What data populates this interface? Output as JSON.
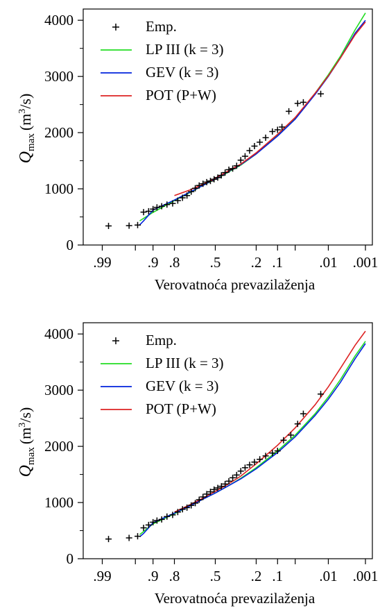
{
  "chart_data": [
    {
      "type": "line",
      "xlabel": "Verovatnoća prevazilaženja",
      "ylabel_main": "Q",
      "ylabel_sub": "max",
      "ylabel_unit_pre": "(m",
      "ylabel_unit_sup": "3",
      "ylabel_unit_post": "/s)",
      "x_ticks": [
        ".99",
        ".9",
        ".8",
        ".5",
        ".2",
        ".1",
        ".01",
        ".001"
      ],
      "x_tick_probs": [
        0.99,
        0.9,
        0.8,
        0.5,
        0.2,
        0.1,
        0.01,
        0.001
      ],
      "x_minor_probs": [
        0.95,
        0.05
      ],
      "y_ticks": [
        0,
        1000,
        2000,
        3000,
        4000
      ],
      "ylim": [
        0,
        4200
      ],
      "legend_position": "top-left",
      "series": [
        {
          "name": "Emp.",
          "kind": "points",
          "color": "#000000",
          "x": [
            0.986,
            0.962,
            0.945,
            0.93,
            0.915,
            0.9,
            0.885,
            0.865,
            0.84,
            0.81,
            0.78,
            0.75,
            0.72,
            0.69,
            0.66,
            0.63,
            0.6,
            0.57,
            0.54,
            0.51,
            0.48,
            0.45,
            0.42,
            0.39,
            0.36,
            0.33,
            0.3,
            0.27,
            0.24,
            0.21,
            0.18,
            0.15,
            0.12,
            0.1,
            0.085,
            0.065,
            0.045,
            0.035,
            0.015
          ],
          "y": [
            340,
            345,
            355,
            585,
            600,
            640,
            670,
            690,
            720,
            740,
            790,
            840,
            880,
            950,
            1010,
            1060,
            1090,
            1120,
            1140,
            1170,
            1200,
            1240,
            1290,
            1340,
            1360,
            1410,
            1510,
            1580,
            1680,
            1760,
            1830,
            1910,
            2020,
            2050,
            2100,
            2380,
            2520,
            2540,
            2690
          ]
        },
        {
          "name": "LP III (k = 3)",
          "kind": "line",
          "color": "#22dd22",
          "x": [
            0.94,
            0.9,
            0.8,
            0.7,
            0.6,
            0.5,
            0.4,
            0.3,
            0.2,
            0.1,
            0.05,
            0.02,
            0.01,
            0.005,
            0.002,
            0.001
          ],
          "y": [
            430,
            580,
            790,
            930,
            1060,
            1170,
            1290,
            1420,
            1620,
            1960,
            2260,
            2700,
            3030,
            3360,
            3830,
            4130
          ]
        },
        {
          "name": "GEV (k = 3)",
          "kind": "line",
          "color": "#0022dd",
          "x": [
            0.94,
            0.93,
            0.9,
            0.8,
            0.7,
            0.6,
            0.5,
            0.4,
            0.3,
            0.2,
            0.1,
            0.05,
            0.02,
            0.01,
            0.005,
            0.002,
            0.001
          ],
          "y": [
            360,
            430,
            620,
            800,
            940,
            1060,
            1180,
            1300,
            1430,
            1620,
            1940,
            2240,
            2680,
            3000,
            3330,
            3770,
            4000
          ]
        },
        {
          "name": "POT (P+W)",
          "kind": "line",
          "color": "#dd2222",
          "x": [
            0.8,
            0.7,
            0.6,
            0.5,
            0.4,
            0.3,
            0.2,
            0.1,
            0.05,
            0.02,
            0.01,
            0.005,
            0.002,
            0.001
          ],
          "y": [
            880,
            980,
            1080,
            1190,
            1310,
            1440,
            1640,
            1970,
            2270,
            2700,
            3010,
            3330,
            3740,
            3970
          ]
        }
      ]
    },
    {
      "type": "line",
      "xlabel": "Verovatnoća prevazilaženja",
      "ylabel_main": "Q",
      "ylabel_sub": "max",
      "ylabel_unit_pre": "(m",
      "ylabel_unit_sup": "3",
      "ylabel_unit_post": "/s)",
      "x_ticks": [
        ".99",
        ".9",
        ".8",
        ".5",
        ".2",
        ".1",
        ".01",
        ".001"
      ],
      "x_tick_probs": [
        0.99,
        0.9,
        0.8,
        0.5,
        0.2,
        0.1,
        0.01,
        0.001
      ],
      "x_minor_probs": [
        0.95,
        0.05
      ],
      "y_ticks": [
        0,
        1000,
        2000,
        3000,
        4000
      ],
      "ylim": [
        0,
        4200
      ],
      "legend_position": "top-left",
      "series": [
        {
          "name": "Emp.",
          "kind": "points",
          "color": "#000000",
          "x": [
            0.986,
            0.962,
            0.945,
            0.93,
            0.915,
            0.9,
            0.885,
            0.865,
            0.84,
            0.81,
            0.78,
            0.75,
            0.72,
            0.69,
            0.66,
            0.63,
            0.6,
            0.57,
            0.54,
            0.51,
            0.48,
            0.45,
            0.42,
            0.39,
            0.36,
            0.33,
            0.3,
            0.27,
            0.24,
            0.21,
            0.18,
            0.15,
            0.12,
            0.1,
            0.08,
            0.06,
            0.045,
            0.035,
            0.015
          ],
          "y": [
            350,
            370,
            400,
            550,
            600,
            650,
            680,
            700,
            750,
            780,
            830,
            880,
            910,
            950,
            990,
            1050,
            1100,
            1150,
            1190,
            1230,
            1260,
            1290,
            1330,
            1380,
            1440,
            1490,
            1560,
            1620,
            1670,
            1720,
            1770,
            1830,
            1880,
            1920,
            2110,
            2200,
            2400,
            2580,
            2930
          ]
        },
        {
          "name": "LP III (k = 3)",
          "kind": "line",
          "color": "#22dd22",
          "x": [
            0.94,
            0.9,
            0.8,
            0.7,
            0.6,
            0.5,
            0.4,
            0.3,
            0.2,
            0.1,
            0.05,
            0.02,
            0.01,
            0.005,
            0.002,
            0.001
          ],
          "y": [
            430,
            620,
            800,
            940,
            1060,
            1170,
            1290,
            1430,
            1620,
            1920,
            2200,
            2580,
            2880,
            3190,
            3610,
            3870
          ]
        },
        {
          "name": "GEV (k = 3)",
          "kind": "line",
          "color": "#0022dd",
          "x": [
            0.94,
            0.93,
            0.9,
            0.8,
            0.7,
            0.6,
            0.5,
            0.4,
            0.3,
            0.2,
            0.1,
            0.05,
            0.02,
            0.01,
            0.005,
            0.002,
            0.001
          ],
          "y": [
            390,
            450,
            640,
            810,
            940,
            1060,
            1170,
            1290,
            1420,
            1600,
            1890,
            2170,
            2550,
            2840,
            3140,
            3560,
            3830
          ]
        },
        {
          "name": "POT (P+W)",
          "kind": "line",
          "color": "#dd2222",
          "x": [
            0.8,
            0.7,
            0.6,
            0.5,
            0.4,
            0.3,
            0.2,
            0.1,
            0.05,
            0.02,
            0.01,
            0.005,
            0.002,
            0.001
          ],
          "y": [
            830,
            960,
            1080,
            1200,
            1320,
            1470,
            1690,
            2020,
            2330,
            2740,
            3060,
            3390,
            3800,
            4050
          ]
        }
      ]
    }
  ]
}
